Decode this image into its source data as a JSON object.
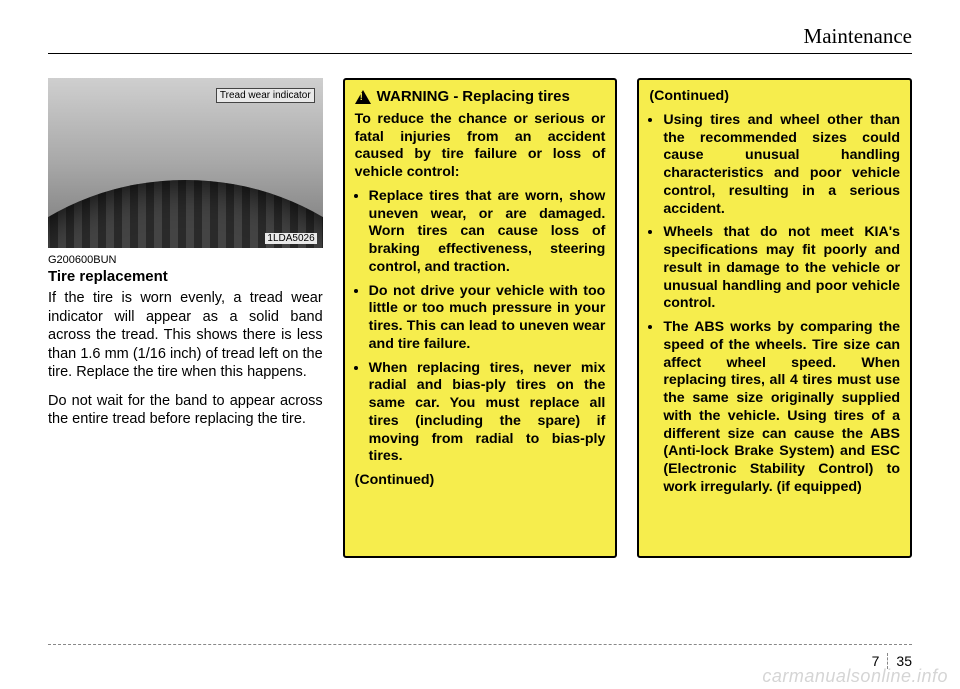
{
  "header": {
    "section": "Maintenance"
  },
  "col1": {
    "twi_label": "Tread wear indicator",
    "img_code": "1LDA5026",
    "ref_code": "G200600BUN",
    "heading": "Tire replacement",
    "para1": "If the tire is worn evenly, a tread wear indicator will appear as a solid band across the tread. This shows there is less than 1.6 mm (1/16 inch) of tread left on the tire. Replace the tire when this happens.",
    "para2": "Do not wait for the band to appear across the entire tread before replacing the tire."
  },
  "col2": {
    "warn_label": "WARNING -",
    "warn_subject": "Replacing tires",
    "intro": "To reduce the chance or serious or fatal injuries from an accident caused by tire failure or loss of vehicle control:",
    "bullets": [
      "Replace tires that are worn, show uneven wear, or are damaged. Worn tires can cause loss of braking effectiveness, steering control, and traction.",
      "Do not drive your vehicle with too little or too much pressure in your tires. This can lead to uneven wear and tire failure.",
      "When replacing tires, never mix radial and bias-ply tires on the same car. You must replace all tires (including the spare) if moving from radial to bias-ply tires."
    ],
    "continued": "(Continued)"
  },
  "col3": {
    "continued_top": "(Continued)",
    "bullets": [
      "Using tires and wheel other than the recommended sizes could cause unusual handling characteristics and poor vehicle control, resulting in a serious accident.",
      "Wheels that do not meet KIA's specifications may fit poorly and result in damage to the vehicle or unusual handling and poor vehicle control.",
      "The ABS works by comparing the speed of the wheels. Tire size can affect wheel speed. When replacing tires, all 4 tires must use the same size originally supplied with the vehicle. Using tires of a different size can cause the ABS (Anti-lock Brake System) and ESC (Electronic Stability Control) to work irregularly. (if equipped)"
    ]
  },
  "footer": {
    "chapter": "7",
    "page": "35"
  },
  "watermark": "carmanualsonline.info",
  "colors": {
    "warn_bg": "#f6ed4d",
    "warn_border": "#000000",
    "page_bg": "#ffffff",
    "text": "#000000",
    "watermark": "#d5d5d5"
  }
}
